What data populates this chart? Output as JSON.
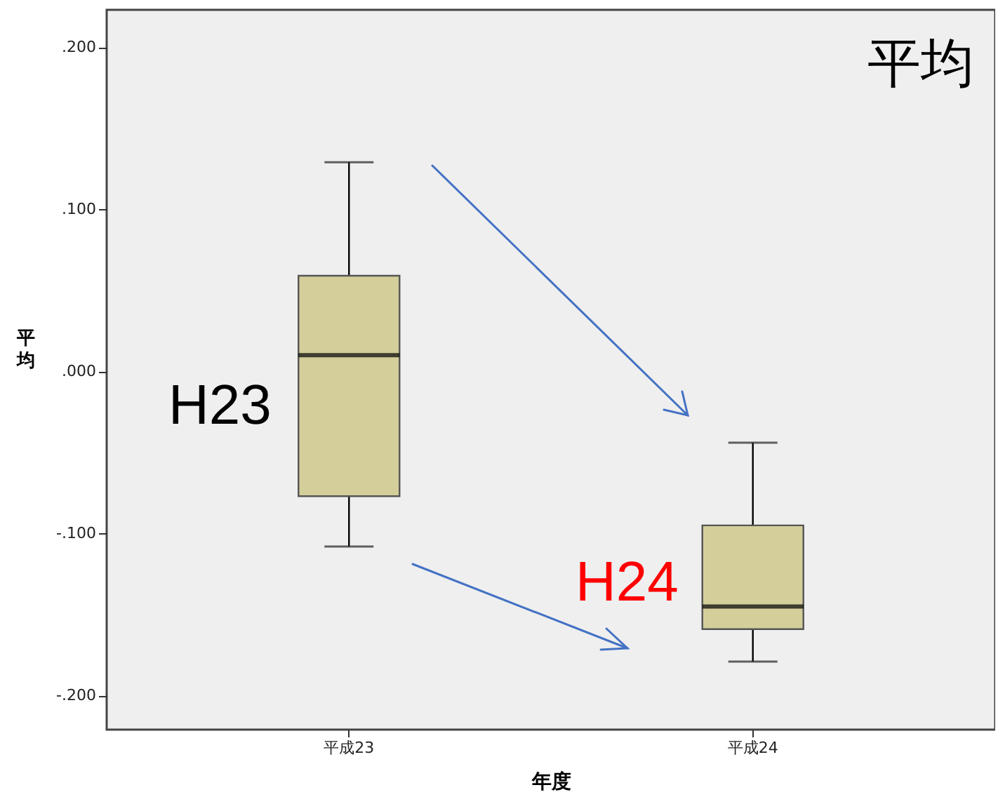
{
  "chart_data": {
    "type": "box",
    "title": "平均",
    "xlabel": "年度",
    "ylabel": "平均",
    "categories": [
      "平成23",
      "平成24"
    ],
    "series": [
      {
        "color": "#d4ce9a",
        "boxes": [
          {
            "low": -0.108,
            "q1": -0.077,
            "median": 0.01,
            "q3": 0.059,
            "high": 0.129
          },
          {
            "low": -0.179,
            "q1": -0.159,
            "median": -0.145,
            "q3": -0.095,
            "high": -0.044
          }
        ]
      }
    ],
    "ylim": [
      -0.221,
      0.223
    ],
    "yticks": [
      {
        "value": -0.2,
        "label": "-.200"
      },
      {
        "value": -0.1,
        "label": "-.100"
      },
      {
        "value": 0,
        "label": ".000"
      },
      {
        "value": 0.1,
        "label": ".100"
      },
      {
        "value": 0.2,
        "label": ".200"
      }
    ],
    "annotations": [
      "H23",
      "H24"
    ],
    "grid": false
  }
}
